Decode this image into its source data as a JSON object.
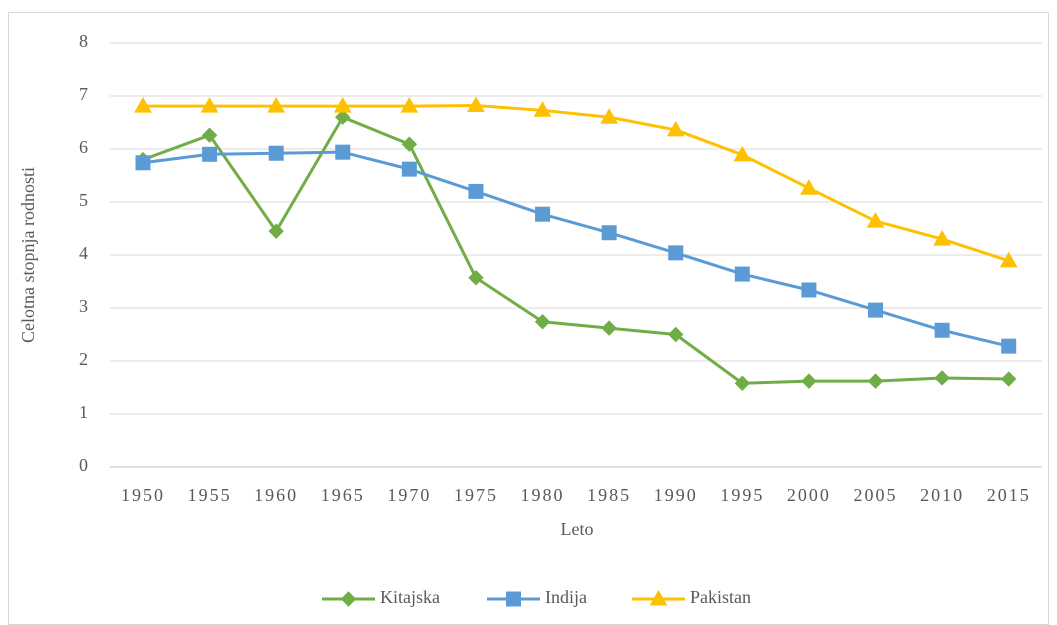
{
  "chart_data": {
    "type": "line",
    "y_label": "Celotna stopnja rodnosti",
    "x_label": "Leto",
    "categories": [
      "1950",
      "1955",
      "1960",
      "1965",
      "1970",
      "1975",
      "1980",
      "1985",
      "1990",
      "1995",
      "2000",
      "2005",
      "2010",
      "2015"
    ],
    "series": [
      {
        "name": "Kitajska",
        "color": "#70ad47",
        "marker": "diamond",
        "values": [
          5.8,
          6.26,
          4.45,
          6.6,
          6.09,
          3.57,
          2.74,
          2.62,
          2.5,
          1.58,
          1.62,
          1.62,
          1.68,
          1.66
        ]
      },
      {
        "name": "Indija",
        "color": "#5b9bd5",
        "marker": "square",
        "values": [
          5.74,
          5.9,
          5.92,
          5.94,
          5.62,
          5.2,
          4.77,
          4.42,
          4.04,
          3.64,
          3.34,
          2.96,
          2.58,
          2.28
        ]
      },
      {
        "name": "Pakistan",
        "color": "#ffc000",
        "marker": "triangle",
        "values": [
          6.81,
          6.81,
          6.81,
          6.81,
          6.81,
          6.82,
          6.73,
          6.6,
          6.36,
          5.89,
          5.26,
          4.64,
          4.3,
          3.89
        ]
      }
    ],
    "ylim": [
      0,
      8
    ],
    "yticks": [
      0,
      1,
      2,
      3,
      4,
      5,
      6,
      7,
      8
    ],
    "grid": true,
    "legend": "bottom"
  }
}
